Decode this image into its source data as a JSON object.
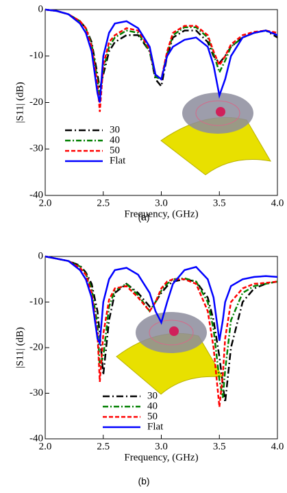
{
  "chart_data": [
    {
      "type": "line",
      "caption": "(a)",
      "xlabel": "Frequency, (GHz)",
      "ylabel": "|S11| (dB)",
      "xlim": [
        2,
        4
      ],
      "ylim": [
        -40,
        0
      ],
      "xticks": [
        {
          "value": 2,
          "label": "2.0"
        },
        2.5,
        {
          "value": 3,
          "label": "3.0"
        },
        3.5,
        {
          "value": 4,
          "label": "4.0"
        }
      ],
      "yticks": [
        0,
        -10,
        -20,
        -30,
        -40
      ],
      "x": [
        2.0,
        2.1,
        2.2,
        2.3,
        2.35,
        2.4,
        2.45,
        2.47,
        2.5,
        2.55,
        2.6,
        2.7,
        2.8,
        2.9,
        2.95,
        3.0,
        3.05,
        3.1,
        3.2,
        3.3,
        3.4,
        3.45,
        3.5,
        3.55,
        3.6,
        3.7,
        3.8,
        3.9,
        4.0
      ],
      "series": [
        {
          "name": "30",
          "color": "#000000",
          "dash": "10,4,2,4",
          "values": [
            0,
            -0.3,
            -1,
            -2.5,
            -4,
            -7,
            -14,
            -17,
            -14,
            -9,
            -7,
            -5.5,
            -5.5,
            -9,
            -15,
            -16.5,
            -10,
            -6,
            -4.5,
            -4.5,
            -7,
            -10,
            -11.5,
            -10,
            -8,
            -6,
            -5,
            -4.5,
            -6
          ]
        },
        {
          "name": "40",
          "color": "#008000",
          "dash": "8,3,2,3",
          "values": [
            0,
            -0.3,
            -1,
            -2.5,
            -4,
            -7.5,
            -15,
            -19,
            -13,
            -8,
            -6,
            -4.5,
            -5,
            -9,
            -14.5,
            -15,
            -9.5,
            -5.5,
            -3.8,
            -3.8,
            -6,
            -9.5,
            -13.5,
            -11,
            -8,
            -6,
            -5,
            -4.5,
            -5.5
          ]
        },
        {
          "name": "50",
          "color": "#ff0000",
          "dash": "6,3",
          "values": [
            0,
            -0.3,
            -1,
            -2.5,
            -4,
            -8,
            -16,
            -22,
            -12,
            -7,
            -5.5,
            -4,
            -4.5,
            -8.5,
            -14,
            -15,
            -9,
            -5,
            -3.5,
            -3.5,
            -5.5,
            -9,
            -12,
            -10,
            -7.5,
            -5.5,
            -4.8,
            -4.5,
            -5
          ]
        },
        {
          "name": "Flat",
          "color": "#0000ff",
          "dash": "none",
          "values": [
            0,
            -0.3,
            -1,
            -3,
            -5,
            -9,
            -18,
            -20,
            -10,
            -5,
            -3,
            -2.5,
            -4,
            -8,
            -14,
            -15,
            -10,
            -8,
            -6.5,
            -6,
            -8,
            -12,
            -18.5,
            -15,
            -10,
            -6,
            -5,
            -4.5,
            -5.5
          ]
        }
      ]
    },
    {
      "type": "line",
      "caption": "(b)",
      "xlabel": "Frequency, (GHz)",
      "ylabel": "|S11| (dB)",
      "xlim": [
        2,
        4
      ],
      "ylim": [
        -40,
        0
      ],
      "xticks": [
        {
          "value": 2,
          "label": "2.0"
        },
        2.5,
        {
          "value": 3,
          "label": "3.0"
        },
        3.5,
        {
          "value": 4,
          "label": "4.0"
        }
      ],
      "yticks": [
        0,
        -10,
        -20,
        -30,
        -40
      ],
      "x": [
        2.0,
        2.1,
        2.2,
        2.3,
        2.35,
        2.4,
        2.45,
        2.47,
        2.5,
        2.55,
        2.6,
        2.7,
        2.8,
        2.9,
        2.95,
        3.0,
        3.05,
        3.1,
        3.2,
        3.3,
        3.4,
        3.45,
        3.5,
        3.53,
        3.55,
        3.6,
        3.7,
        3.8,
        3.9,
        4.0
      ],
      "series": [
        {
          "name": "30",
          "color": "#000000",
          "dash": "10,4,2,4",
          "values": [
            0,
            -0.5,
            -1,
            -2,
            -3.5,
            -6,
            -12,
            -17,
            -26,
            -14,
            -8,
            -6,
            -8,
            -11,
            -10,
            -8,
            -6.5,
            -5.5,
            -5,
            -5.5,
            -9,
            -14,
            -22,
            -28,
            -32,
            -20,
            -10,
            -7,
            -6,
            -5.5
          ]
        },
        {
          "name": "40",
          "color": "#008000",
          "dash": "8,3,2,3",
          "values": [
            0,
            -0.5,
            -1,
            -2.2,
            -3.8,
            -7,
            -15,
            -24,
            -22,
            -11,
            -7.5,
            -6,
            -8.5,
            -12,
            -10,
            -7.5,
            -6,
            -5,
            -4.8,
            -5.5,
            -10,
            -16,
            -27,
            -31,
            -25,
            -14,
            -8,
            -6.5,
            -6,
            -5.5
          ]
        },
        {
          "name": "50",
          "color": "#ff0000",
          "dash": "6,3",
          "values": [
            0,
            -0.5,
            -1,
            -2.5,
            -4,
            -8,
            -17,
            -27.5,
            -17,
            -9.5,
            -7,
            -6.5,
            -9,
            -12,
            -10,
            -7,
            -5.5,
            -5,
            -5,
            -6,
            -12,
            -20,
            -33,
            -26,
            -18,
            -10,
            -7,
            -6,
            -5.8,
            -5.5
          ]
        },
        {
          "name": "Flat",
          "color": "#0000ff",
          "dash": "none",
          "values": [
            0,
            -0.5,
            -1,
            -3,
            -5,
            -9,
            -18,
            -19,
            -10,
            -5,
            -3,
            -2.5,
            -4,
            -8,
            -12,
            -14.5,
            -10,
            -6,
            -3,
            -2.3,
            -5,
            -9,
            -18.5,
            -14,
            -10,
            -6.5,
            -5,
            -4.5,
            -4.3,
            -4.5
          ]
        }
      ]
    }
  ]
}
